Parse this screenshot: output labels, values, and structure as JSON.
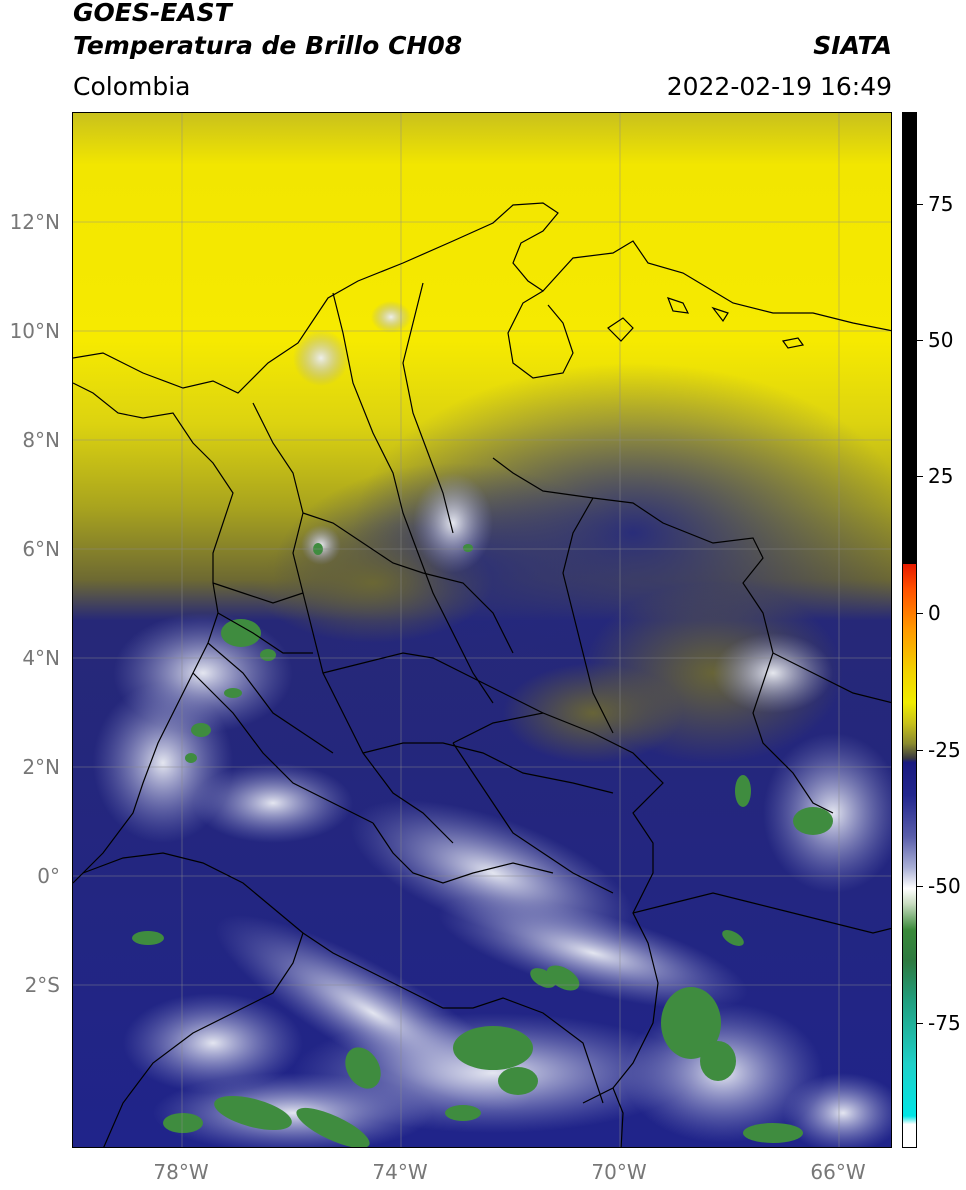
{
  "header": {
    "title_line1": "GOES-EAST",
    "title_line2": "Temperatura de Brillo CH08",
    "organization": "SIATA",
    "region": "Colombia",
    "datetime": "2022-02-19 16:49"
  },
  "map": {
    "lon_range": [
      -80,
      -65
    ],
    "lat_range": [
      -5,
      14
    ],
    "lat_ticks": [
      {
        "value": 12,
        "label": "12°N"
      },
      {
        "value": 10,
        "label": "10°N"
      },
      {
        "value": 8,
        "label": "8°N"
      },
      {
        "value": 6,
        "label": "6°N"
      },
      {
        "value": 4,
        "label": "4°N"
      },
      {
        "value": 2,
        "label": "2°N"
      },
      {
        "value": 0,
        "label": "0°"
      },
      {
        "value": -2,
        "label": "2°S"
      }
    ],
    "lon_ticks": [
      {
        "value": -78,
        "label": "78°W"
      },
      {
        "value": -74,
        "label": "74°W"
      },
      {
        "value": -70,
        "label": "70°W"
      },
      {
        "value": -66,
        "label": "66°W"
      }
    ],
    "colors": {
      "warm_yellow": "#f2e600",
      "olive": "#9a9a20",
      "navy": "#20248a",
      "cloud_white": "#e6e8f2",
      "cloud_green": "#3c8c3c",
      "border": "#000000"
    }
  },
  "colorbar": {
    "range": [
      -100,
      90
    ],
    "ticks": [
      {
        "value": 75,
        "label": "75"
      },
      {
        "value": 50,
        "label": "50"
      },
      {
        "value": 25,
        "label": "25"
      },
      {
        "value": 0,
        "label": "0"
      },
      {
        "value": -25,
        "label": "-25"
      },
      {
        "value": -50,
        "label": "-50"
      },
      {
        "value": -75,
        "label": "-75"
      }
    ]
  }
}
